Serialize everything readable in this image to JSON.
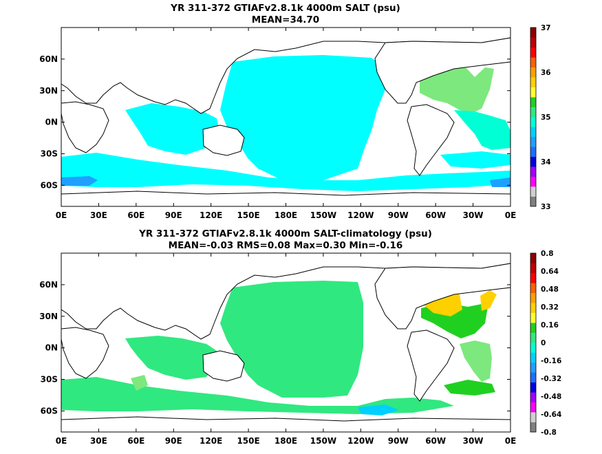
{
  "chart_data": [
    {
      "type": "heatmap",
      "title": "YR 311-372 GTIAFv2.8.1k 4000m SALT (psu)",
      "subtitle": "MEAN=34.70",
      "x_tick_labels": [
        "0E",
        "30E",
        "60E",
        "90E",
        "120E",
        "150E",
        "180E",
        "150W",
        "120W",
        "90W",
        "60W",
        "30W",
        "0E"
      ],
      "y_tick_labels": [
        "60N",
        "30N",
        "0N",
        "30S",
        "60S"
      ],
      "x_range": [
        0,
        360
      ],
      "y_range": [
        -80,
        90
      ],
      "y_ticks": [
        60,
        30,
        0,
        -30,
        -60
      ],
      "colorbar_labels": [
        "37",
        "36",
        "35",
        "34",
        "33"
      ],
      "colorbar_range": [
        33,
        37
      ],
      "colorbar_colors": [
        "#808080",
        "#d0d0d0",
        "#ff00ff",
        "#a000ff",
        "#0000e0",
        "#1e6fff",
        "#1ea0ff",
        "#00d0ff",
        "#00ffd5",
        "#30e880",
        "#20d020",
        "#ffff30",
        "#ffd000",
        "#ffa000",
        "#ff6000",
        "#ff0000",
        "#c00000",
        "#8b0000"
      ],
      "regions": [
        {
          "value": 34.8,
          "color": "#00ffff",
          "desc": "Pacific deep water"
        },
        {
          "value": 34.8,
          "color": "#00ffff",
          "desc": "Indian Ocean"
        },
        {
          "value": 34.8,
          "color": "#00ffff",
          "desc": "Southern Ocean"
        },
        {
          "value": 35.0,
          "color": "#30e880",
          "desc": "North Atlantic"
        },
        {
          "value": 34.9,
          "color": "#00ffd5",
          "desc": "South Atlantic"
        },
        {
          "value": 34.7,
          "color": "#1ea0ff",
          "desc": "Southern Ocean patches"
        }
      ]
    },
    {
      "type": "heatmap",
      "title": "YR 311-372 GTIAFv2.8.1k 4000m SALT-climatology (psu)",
      "subtitle": "MEAN=-0.03   RMS=0.08   Max=0.30   Min=-0.16",
      "x_tick_labels": [
        "0E",
        "30E",
        "60E",
        "90E",
        "120E",
        "150E",
        "180E",
        "150W",
        "120W",
        "90W",
        "60W",
        "30W",
        "0E"
      ],
      "y_tick_labels": [
        "60N",
        "30N",
        "0N",
        "30S",
        "60S"
      ],
      "x_range": [
        0,
        360
      ],
      "y_range": [
        -80,
        90
      ],
      "y_ticks": [
        60,
        30,
        0,
        -30,
        -60
      ],
      "colorbar_labels": [
        "0.8",
        "0.64",
        "0.48",
        "0.32",
        "0.16",
        "0",
        "-0.16",
        "-0.32",
        "-0.48",
        "-0.64",
        "-0.8"
      ],
      "colorbar_range": [
        -0.8,
        0.8
      ],
      "colorbar_colors": [
        "#808080",
        "#d0d0d0",
        "#ff00ff",
        "#a000ff",
        "#0000e0",
        "#1e6fff",
        "#1ea0ff",
        "#00d0ff",
        "#00ffd5",
        "#30e880",
        "#20d020",
        "#ffff30",
        "#ffd000",
        "#ffa000",
        "#ff6000",
        "#ff0000",
        "#c00000",
        "#8b0000"
      ],
      "regions": [
        {
          "value": -0.05,
          "color": "#30e880",
          "desc": "Pacific"
        },
        {
          "value": -0.05,
          "color": "#30e880",
          "desc": "Indian Ocean"
        },
        {
          "value": -0.05,
          "color": "#30e880",
          "desc": "Southern Ocean"
        },
        {
          "value": 0.25,
          "color": "#ffd000",
          "desc": "North Atlantic west"
        },
        {
          "value": 0.1,
          "color": "#20d020",
          "desc": "North Atlantic"
        },
        {
          "value": 0.05,
          "color": "#7de87d",
          "desc": "South Atlantic"
        },
        {
          "value": -0.15,
          "color": "#00d0ff",
          "desc": "small patches"
        }
      ]
    }
  ]
}
